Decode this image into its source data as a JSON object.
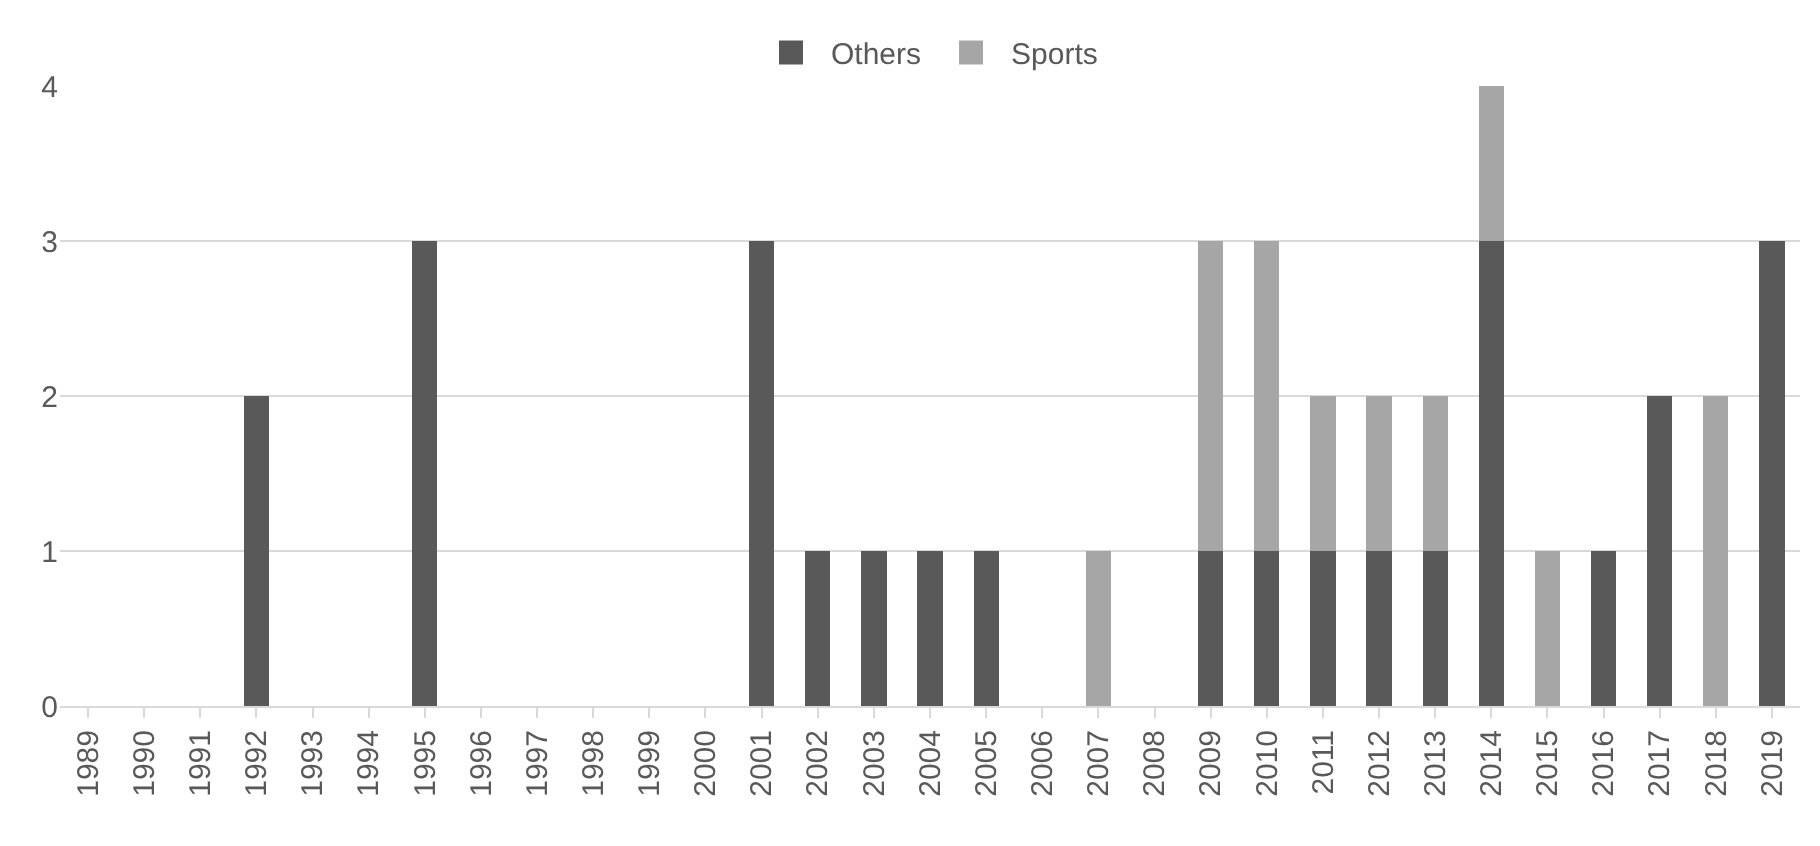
{
  "chart_data": {
    "type": "bar",
    "stacked": true,
    "categories": [
      "1989",
      "1990",
      "1991",
      "1992",
      "1993",
      "1994",
      "1995",
      "1996",
      "1997",
      "1998",
      "1999",
      "2000",
      "2001",
      "2002",
      "2003",
      "2004",
      "2005",
      "2006",
      "2007",
      "2008",
      "2009",
      "2010",
      "2011",
      "2012",
      "2013",
      "2014",
      "2015",
      "2016",
      "2017",
      "2018",
      "2019"
    ],
    "series": [
      {
        "name": "Others",
        "color": "#595959",
        "values": [
          0,
          0,
          0,
          2,
          0,
          0,
          3,
          0,
          0,
          0,
          0,
          0,
          3,
          1,
          1,
          1,
          1,
          0,
          0,
          0,
          1,
          1,
          1,
          1,
          1,
          3,
          0,
          1,
          2,
          0,
          3
        ]
      },
      {
        "name": "Sports",
        "color": "#a6a6a6",
        "values": [
          0,
          0,
          0,
          0,
          0,
          0,
          0,
          0,
          0,
          0,
          0,
          0,
          0,
          0,
          0,
          0,
          0,
          0,
          1,
          0,
          2,
          2,
          1,
          1,
          1,
          1,
          1,
          0,
          0,
          2,
          0
        ]
      }
    ],
    "ylim": [
      0,
      4
    ],
    "yticks": [
      0,
      1,
      2,
      3,
      4
    ],
    "grid": "y",
    "legend": "top"
  }
}
